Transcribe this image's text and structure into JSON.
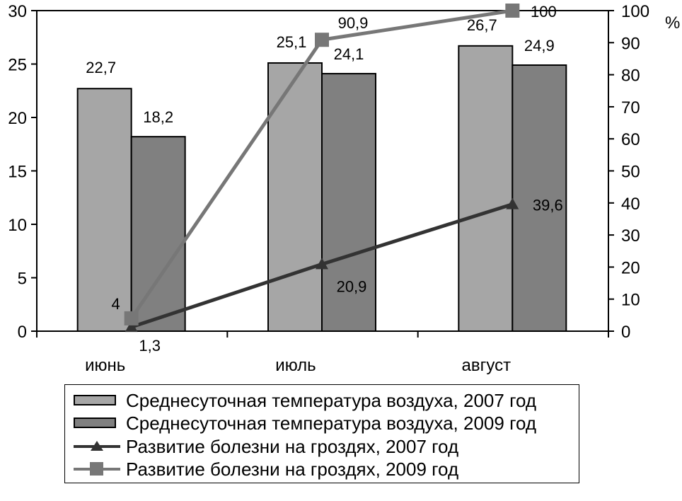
{
  "chart_data": {
    "type": "bar",
    "categories": [
      "июнь",
      "июль",
      "август"
    ],
    "y_left": {
      "ticks": [
        "0",
        "5",
        "10",
        "15",
        "20",
        "25",
        "30"
      ],
      "ylim": [
        0,
        30
      ]
    },
    "y_right": {
      "ticks": [
        "0",
        "10",
        "20",
        "30",
        "40",
        "50",
        "60",
        "70",
        "80",
        "90",
        "100"
      ],
      "ylim": [
        0,
        100
      ],
      "unit_label": "%"
    },
    "grid": false,
    "legend_position": "bottom",
    "bar_series": [
      {
        "name": "Среднесуточная температура воздуха, 2007 год",
        "values": [
          22.7,
          25.1,
          26.7
        ],
        "labels": [
          "22,7",
          "25,1",
          "26,7"
        ],
        "color": "#a6a6a6"
      },
      {
        "name": "Среднесуточная температура воздуха, 2009 год",
        "values": [
          18.2,
          24.1,
          24.9
        ],
        "labels": [
          "18,2",
          "24,1",
          "24,9"
        ],
        "color": "#808080"
      }
    ],
    "line_series": [
      {
        "name": "Развитие болезни на гроздях, 2007 год",
        "values": [
          1.3,
          20.9,
          39.6
        ],
        "labels": [
          "1,3",
          "20,9",
          "39,6"
        ],
        "color": "#333333",
        "marker": "triangle",
        "axis": "right"
      },
      {
        "name": "Развитие болезни на гроздях, 2009 год",
        "values": [
          4,
          90.9,
          100
        ],
        "labels": [
          "4",
          "90,9",
          "100"
        ],
        "color": "#777777",
        "marker": "square",
        "axis": "right"
      }
    ]
  },
  "legend": {
    "items": [
      "Среднесуточная температура воздуха, 2007 год",
      "Среднесуточная температура воздуха, 2009 год",
      "Развитие болезни на гроздях, 2007 год",
      "Развитие болезни на гроздях, 2009 год"
    ]
  }
}
